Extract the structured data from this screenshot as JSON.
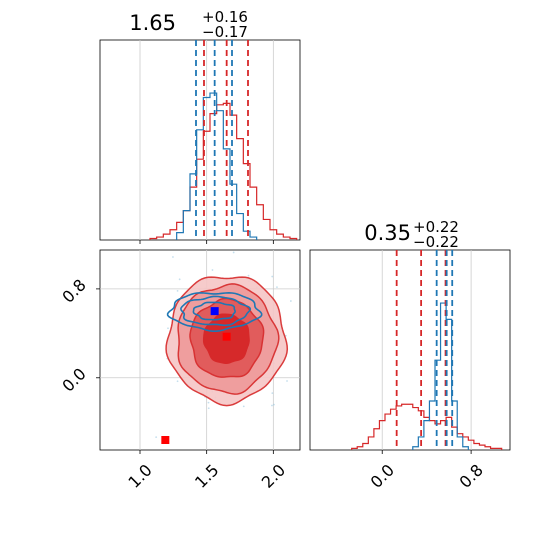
{
  "chart_data": [
    {
      "type": "histogram",
      "panel": "marginal-param-1",
      "title": {
        "value": "1.65",
        "plus": "+0.16",
        "minus": "−0.17"
      },
      "xlim": [
        0.7,
        2.2
      ],
      "grid": true,
      "series": [
        {
          "color": "#d62728",
          "bin_centers": [
            1.1,
            1.15,
            1.2,
            1.25,
            1.3,
            1.35,
            1.4,
            1.45,
            1.5,
            1.55,
            1.6,
            1.65,
            1.7,
            1.75,
            1.8,
            1.85,
            1.9,
            1.95,
            2.0,
            2.05,
            2.1,
            2.15
          ],
          "values": [
            0.01,
            0.02,
            0.04,
            0.07,
            0.12,
            0.2,
            0.36,
            0.55,
            0.74,
            0.86,
            0.92,
            0.93,
            0.85,
            0.69,
            0.52,
            0.36,
            0.24,
            0.14,
            0.07,
            0.04,
            0.02,
            0.01
          ],
          "quantiles": [
            1.48,
            1.65,
            1.81
          ]
        },
        {
          "color": "#1f77b4",
          "bin_centers": [
            1.3,
            1.35,
            1.4,
            1.45,
            1.5,
            1.55,
            1.6,
            1.65,
            1.7,
            1.75,
            1.8,
            1.85
          ],
          "values": [
            0.05,
            0.2,
            0.45,
            0.75,
            0.97,
            1.0,
            0.88,
            0.62,
            0.38,
            0.18,
            0.06,
            0.02
          ],
          "quantiles": [
            1.42,
            1.56,
            1.69
          ]
        }
      ]
    },
    {
      "type": "contour",
      "panel": "joint",
      "xlim": [
        0.7,
        2.2
      ],
      "ylim": [
        -0.65,
        1.15
      ],
      "yticks": [
        "0.0",
        "0.8"
      ],
      "xticks": [
        "1.0",
        "1.5",
        "2.0"
      ],
      "grid": true,
      "series": [
        {
          "color": "#d62728",
          "center": [
            1.65,
            0.35
          ],
          "sigma": [
            0.17,
            0.22
          ],
          "marker": [
            1.65,
            0.37
          ]
        },
        {
          "color": "#1f77b4",
          "center": [
            1.56,
            0.6
          ],
          "sigma": [
            0.12,
            0.06
          ],
          "marker": [
            1.56,
            0.6
          ]
        },
        {
          "color": "#ff0000",
          "marker": [
            1.19,
            -0.56
          ]
        }
      ]
    },
    {
      "type": "histogram",
      "panel": "marginal-param-2",
      "title": {
        "value": "0.35",
        "plus": "+0.22",
        "minus": "−0.22"
      },
      "xlim": [
        -0.65,
        1.15
      ],
      "xticks": [
        "0.0",
        "0.8"
      ],
      "grid": true,
      "series": [
        {
          "color": "#d62728",
          "bin_centers": [
            -0.25,
            -0.2,
            -0.15,
            -0.1,
            -0.05,
            0.0,
            0.05,
            0.1,
            0.15,
            0.2,
            0.25,
            0.3,
            0.35,
            0.4,
            0.45,
            0.5,
            0.55,
            0.6,
            0.65,
            0.7,
            0.75,
            0.8,
            0.85,
            0.9,
            0.95,
            1.0,
            1.05
          ],
          "values": [
            0.01,
            0.02,
            0.04,
            0.08,
            0.13,
            0.18,
            0.22,
            0.25,
            0.27,
            0.28,
            0.28,
            0.26,
            0.24,
            0.2,
            0.18,
            0.16,
            0.18,
            0.2,
            0.14,
            0.1,
            0.08,
            0.06,
            0.04,
            0.03,
            0.02,
            0.01,
            0.01
          ],
          "quantiles": [
            0.13,
            0.35,
            0.57
          ]
        },
        {
          "color": "#1f77b4",
          "bin_centers": [
            0.3,
            0.35,
            0.4,
            0.45,
            0.5,
            0.55,
            0.6,
            0.65,
            0.7,
            0.75
          ],
          "values": [
            0.02,
            0.08,
            0.18,
            0.3,
            0.55,
            0.9,
            0.8,
            0.3,
            0.08,
            0.02
          ],
          "quantiles": [
            0.49,
            0.58,
            0.63
          ]
        }
      ]
    }
  ]
}
